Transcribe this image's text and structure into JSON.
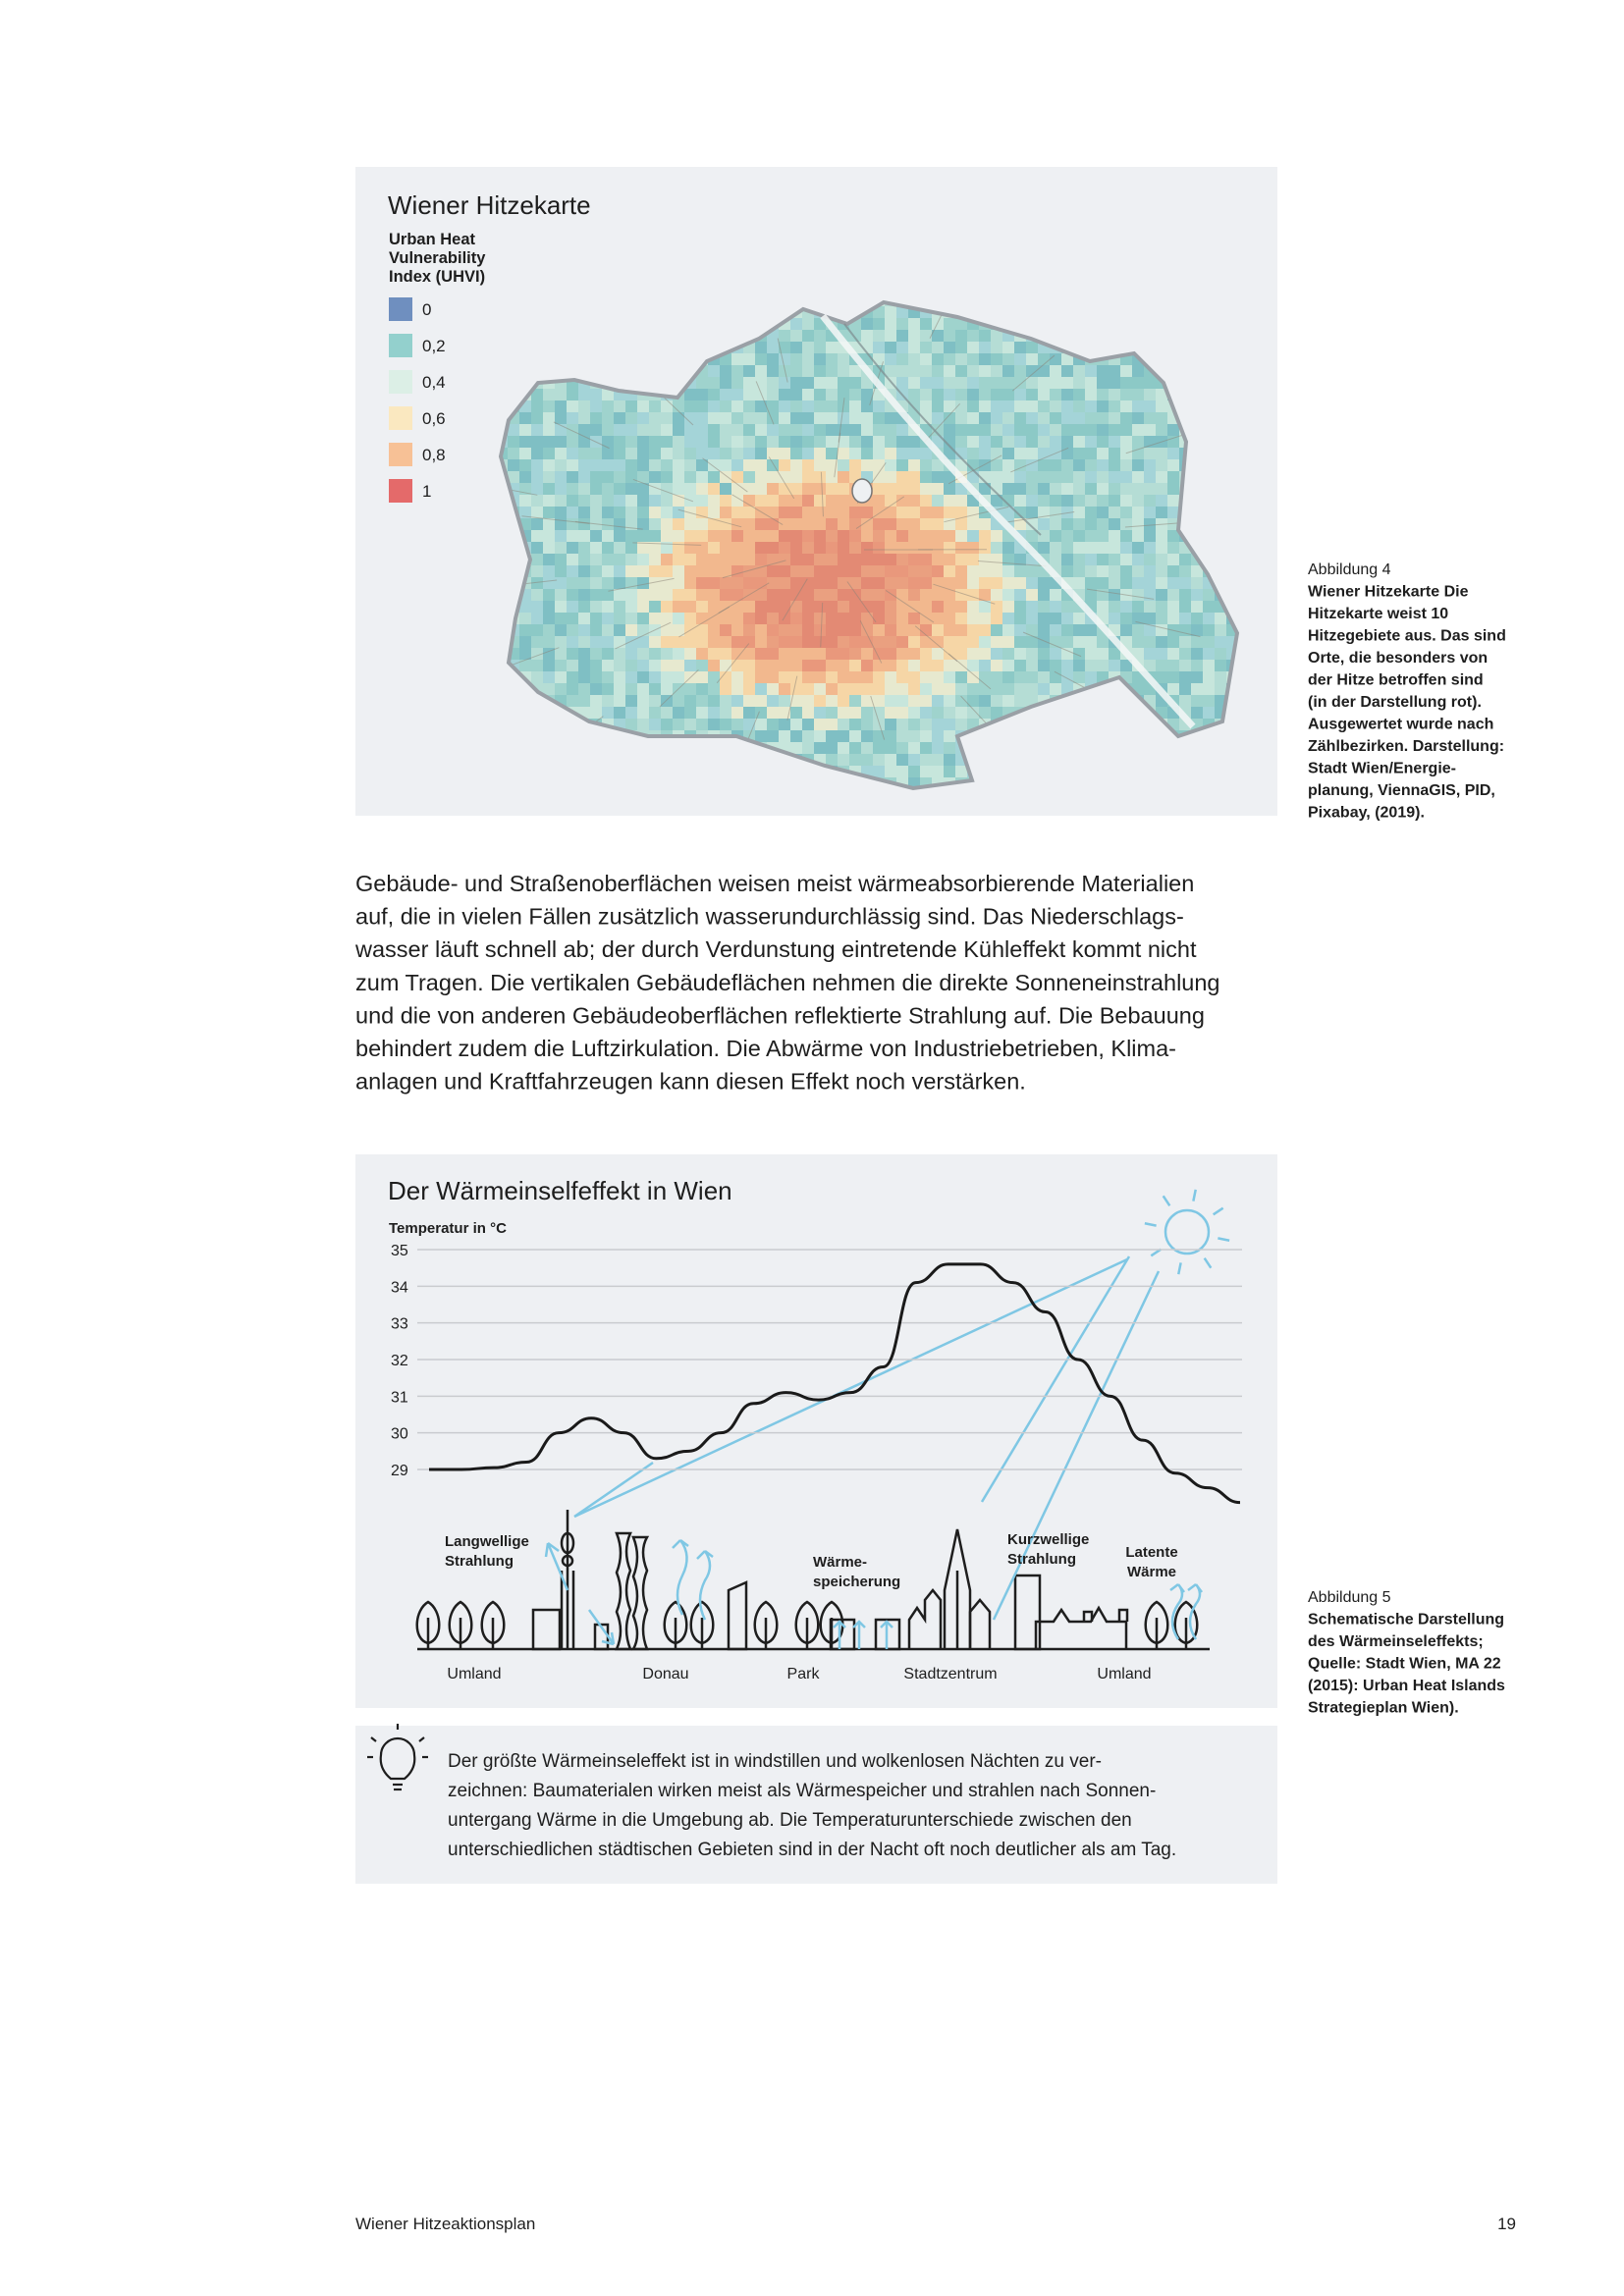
{
  "figure_1": {
    "title": "Wiener Hitzekarte",
    "legend_title": [
      "Urban Heat",
      "Vulnerability",
      "Index (UHVI)"
    ],
    "legend": [
      {
        "label": "0",
        "color": "#6f8fbf"
      },
      {
        "label": "0,2",
        "color": "#93d0cd"
      },
      {
        "label": "0,4",
        "color": "#dcefe6"
      },
      {
        "label": "0,6",
        "color": "#fae8c0"
      },
      {
        "label": "0,8",
        "color": "#f7c196"
      },
      {
        "label": "1",
        "color": "#e46a6a"
      }
    ],
    "caption_label": "Abbildung 4",
    "caption": [
      "Wiener Hitzekarte Die",
      "Hitzekarte weist 10",
      "Hitzegebiete aus. Das sind",
      "Orte, die besonders von",
      "der Hitze betroffen sind",
      "(in der Darstellung rot).",
      "Ausgewertet wurde nach",
      "Zählbezirken. Darstellung:",
      "Stadt Wien/Energie-",
      "planung, ViennaGIS, PID,",
      "Pixabay, (2019)."
    ]
  },
  "paragraph": [
    "Gebäude- und Straßenoberflächen weisen meist wärmeabsorbierende Materialien",
    "auf, die in vielen Fällen zusätzlich wasserundurchlässig sind. Das Niederschlags-",
    "wasser läuft schnell ab; der durch Verdunstung eintretende Kühleffekt kommt nicht",
    "zum Tragen. Die vertikalen Gebäudeflächen nehmen die direkte Sonneneinstrahlung",
    "und die von anderen Gebäudeoberflächen reflektierte Strahlung auf. Die Bebauung",
    "behindert zudem die Luftzirkulation. Die Abwärme von Industriebetrieben, Klima-",
    "anlagen und Kraftfahrzeugen kann diesen Effekt noch verstärken."
  ],
  "figure_2": {
    "title": "Der Wärmeinselfeffekt in Wien",
    "chart": {
      "type": "line",
      "y_label": "Temperatur in °C",
      "ylim": [
        29,
        35
      ],
      "yticks": [
        29,
        30,
        31,
        32,
        33,
        34,
        35
      ],
      "grid": true,
      "color": "#1a1a1a",
      "values": [
        29.0,
        29.0,
        29.05,
        29.2,
        30.0,
        30.4,
        30.0,
        29.3,
        29.5,
        30.0,
        30.8,
        31.1,
        30.9,
        31.1,
        31.8,
        34.1,
        34.6,
        34.6,
        34.1,
        33.3,
        32.0,
        31.0,
        29.8,
        28.9,
        28.5,
        28.1
      ]
    },
    "locations": [
      "Umland",
      "Donau",
      "Park",
      "Stadtzentrum",
      "Umland"
    ],
    "annotations": [
      [
        "Langwellige",
        "Strahlung"
      ],
      [
        "Wärme-",
        "speicherung"
      ],
      [
        "Kurzwellige",
        "Strahlung"
      ],
      [
        "Latente",
        "Wärme"
      ]
    ],
    "caption_label": "Abbildung 5",
    "caption": [
      "Schematische Darstellung",
      "des Wärmeinseleffekts;",
      "Quelle: Stadt Wien, MA 22",
      "(2015): Urban Heat Islands",
      "Strategieplan Wien)."
    ]
  },
  "tip": [
    "Der größte Wärmeinseleffekt ist in windstillen und wolkenlosen Nächten zu ver-",
    "zeichnen: Baumaterialen wirken meist als Wärmespeicher und strahlen nach Sonnen-",
    "untergang Wärme in die Umgebung ab. Die Temperaturunterschiede zwischen den",
    "unterschiedlichen städtischen Gebieten sind in der Nacht oft noch deutlicher als am Tag."
  ],
  "footer": {
    "title": "Wiener Hitzeaktionsplan",
    "page": "19"
  }
}
